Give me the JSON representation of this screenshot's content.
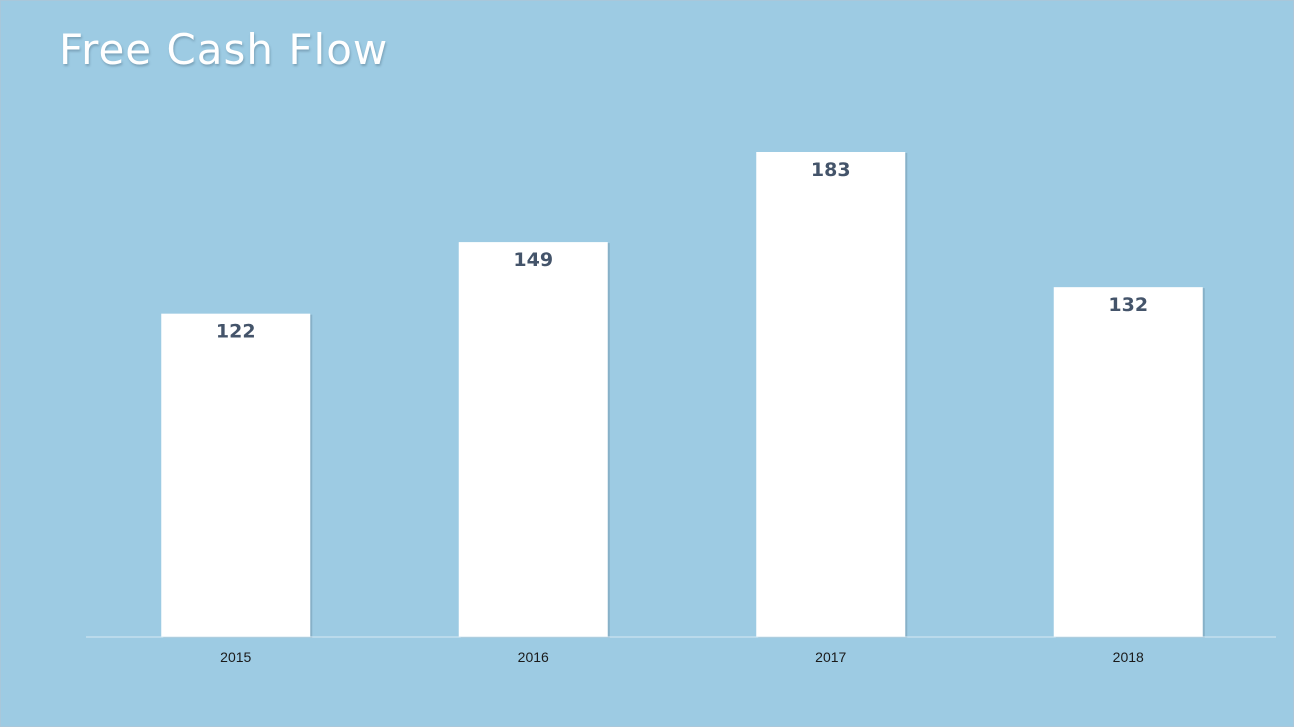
{
  "slide": {
    "title": "Free Cash Flow"
  },
  "colors": {
    "background": "#9dcbe3",
    "bar": "#ffffff",
    "data_label": "#44546a",
    "title": "#ffffff"
  },
  "chart_data": {
    "type": "bar",
    "title": "Free Cash Flow",
    "xlabel": "",
    "ylabel": "",
    "categories": [
      "2015",
      "2016",
      "2017",
      "2018"
    ],
    "values": [
      122,
      149,
      183,
      132
    ],
    "ylim": [
      0,
      183
    ],
    "grid": false,
    "legend": "none"
  }
}
